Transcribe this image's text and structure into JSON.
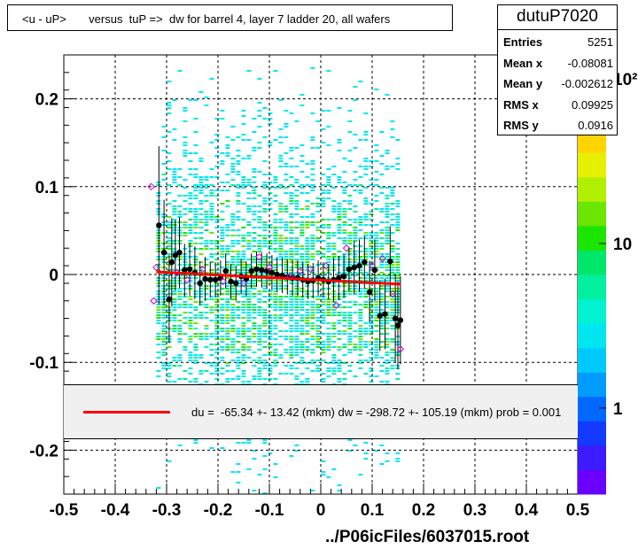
{
  "title": "<u - uP>       versus  tuP =>  dw for barrel 4, layer 7 ladder 20, all wafers",
  "stats": {
    "name": "dutuP7020",
    "rows": [
      {
        "label": "Entries",
        "value": "5251"
      },
      {
        "label": "Mean x",
        "value": "-0.08081"
      },
      {
        "label": "Mean y",
        "value": "-0.002612"
      },
      {
        "label": "RMS x",
        "value": "0.09925"
      },
      {
        "label": "RMS y",
        "value": "0.0916"
      }
    ]
  },
  "fit_legend": {
    "text": "du =  -65.34 +- 13.42 (mkm) dw = -298.72 +- 105.19 (mkm) prob = 0.001",
    "line_color": "#ff0000"
  },
  "file_label": "../P06icFiles/6037015.root",
  "colors": {
    "profile_points": "#000000",
    "open_points": "#cc00cc",
    "fit_line": "#ff0000",
    "palette": [
      "#6a00ff",
      "#3c1bff",
      "#1439ff",
      "#0067ff",
      "#009cff",
      "#00c9ff",
      "#00e6f0",
      "#00f2d0",
      "#00f0a0",
      "#00e66a",
      "#1ae600",
      "#6ae600",
      "#b0f000",
      "#e6f000",
      "#ffd400",
      "#ff9c00",
      "#ff5a00",
      "#ff0000"
    ]
  },
  "chart_data": {
    "type": "scatter",
    "title": "<u - uP>       versus  tuP =>  dw for barrel 4, layer 7 ladder 20, all wafers",
    "xlim": [
      -0.5,
      0.5
    ],
    "ylim": [
      -0.25,
      0.25
    ],
    "x_ticks": [
      "-0.5",
      "-0.4",
      "-0.3",
      "-0.2",
      "-0.1",
      "0",
      "0.1",
      "0.2",
      "0.3",
      "0.4",
      "0.5"
    ],
    "y_ticks": [
      {
        "value": 0.2,
        "label": "0.2"
      },
      {
        "value": 0.1,
        "label": "0.1"
      },
      {
        "value": 0,
        "label": "0"
      },
      {
        "value": -0.1,
        "label": "-0.1"
      },
      {
        "value": -0.2,
        "label": "-0.2"
      }
    ],
    "grid": true,
    "colorbar_labels": [
      {
        "value": 1,
        "label": "1"
      },
      {
        "value": 10,
        "label": "10"
      },
      {
        "value": 100,
        "label": "10²"
      }
    ],
    "colorbar_range": [
      0.3,
      140
    ],
    "density": {
      "x_range": [
        -0.32,
        0.15
      ],
      "y_center": -0.01,
      "y_sigma": 0.09
    },
    "profile": [
      {
        "x": -0.315,
        "y": 0.056,
        "err": 0.09
      },
      {
        "x": -0.305,
        "y": 0.025,
        "err": 0.06
      },
      {
        "x": -0.295,
        "y": -0.028,
        "err": 0.05
      },
      {
        "x": -0.29,
        "y": 0.014,
        "err": 0.05
      },
      {
        "x": -0.283,
        "y": 0.022,
        "err": 0.04
      },
      {
        "x": -0.275,
        "y": 0.025,
        "err": 0.04
      },
      {
        "x": -0.265,
        "y": 0.005,
        "err": 0.03
      },
      {
        "x": -0.255,
        "y": 0.006,
        "err": 0.03
      },
      {
        "x": -0.245,
        "y": 0.002,
        "err": 0.03
      },
      {
        "x": -0.235,
        "y": -0.01,
        "err": 0.025
      },
      {
        "x": -0.225,
        "y": -0.005,
        "err": 0.025
      },
      {
        "x": -0.215,
        "y": -0.006,
        "err": 0.02
      },
      {
        "x": -0.205,
        "y": -0.006,
        "err": 0.02
      },
      {
        "x": -0.195,
        "y": -0.004,
        "err": 0.02
      },
      {
        "x": -0.185,
        "y": 0.004,
        "err": 0.02
      },
      {
        "x": -0.175,
        "y": -0.008,
        "err": 0.02
      },
      {
        "x": -0.165,
        "y": -0.01,
        "err": 0.02
      },
      {
        "x": -0.155,
        "y": -0.002,
        "err": 0.02
      },
      {
        "x": -0.145,
        "y": -0.005,
        "err": 0.02
      },
      {
        "x": -0.135,
        "y": 0.004,
        "err": 0.02
      },
      {
        "x": -0.125,
        "y": 0.006,
        "err": 0.02
      },
      {
        "x": -0.115,
        "y": 0.005,
        "err": 0.02
      },
      {
        "x": -0.105,
        "y": 0.004,
        "err": 0.02
      },
      {
        "x": -0.095,
        "y": 0.002,
        "err": 0.02
      },
      {
        "x": -0.085,
        "y": 0.0,
        "err": 0.02
      },
      {
        "x": -0.075,
        "y": -0.001,
        "err": 0.02
      },
      {
        "x": -0.065,
        "y": -0.003,
        "err": 0.02
      },
      {
        "x": -0.055,
        "y": -0.004,
        "err": 0.02
      },
      {
        "x": -0.045,
        "y": -0.004,
        "err": 0.02
      },
      {
        "x": -0.035,
        "y": -0.006,
        "err": 0.02
      },
      {
        "x": -0.025,
        "y": -0.008,
        "err": 0.02
      },
      {
        "x": -0.015,
        "y": -0.007,
        "err": 0.02
      },
      {
        "x": -0.005,
        "y": -0.004,
        "err": 0.02
      },
      {
        "x": 0.005,
        "y": -0.006,
        "err": 0.02
      },
      {
        "x": 0.015,
        "y": -0.008,
        "err": 0.02
      },
      {
        "x": 0.025,
        "y": -0.006,
        "err": 0.025
      },
      {
        "x": 0.035,
        "y": -0.004,
        "err": 0.025
      },
      {
        "x": 0.045,
        "y": -0.002,
        "err": 0.025
      },
      {
        "x": 0.055,
        "y": 0.006,
        "err": 0.025
      },
      {
        "x": 0.065,
        "y": 0.008,
        "err": 0.03
      },
      {
        "x": 0.075,
        "y": 0.01,
        "err": 0.03
      },
      {
        "x": 0.085,
        "y": 0.014,
        "err": 0.03
      },
      {
        "x": 0.095,
        "y": -0.02,
        "err": 0.035
      },
      {
        "x": 0.105,
        "y": 0.005,
        "err": 0.035
      },
      {
        "x": 0.115,
        "y": -0.047,
        "err": 0.04
      },
      {
        "x": 0.125,
        "y": -0.045,
        "err": 0.04
      },
      {
        "x": 0.135,
        "y": 0.015,
        "err": 0.04
      },
      {
        "x": 0.145,
        "y": -0.05,
        "err": 0.05
      },
      {
        "x": 0.15,
        "y": -0.058,
        "err": 0.05
      },
      {
        "x": 0.155,
        "y": -0.052,
        "err": 0.05
      }
    ],
    "open_points": [
      {
        "x": -0.33,
        "y": 0.1
      },
      {
        "x": -0.325,
        "y": -0.03
      },
      {
        "x": -0.32,
        "y": 0.008
      },
      {
        "x": -0.28,
        "y": 0.002
      },
      {
        "x": -0.26,
        "y": -0.006
      },
      {
        "x": -0.23,
        "y": 0.006
      },
      {
        "x": -0.19,
        "y": -0.008
      },
      {
        "x": -0.15,
        "y": -0.01
      },
      {
        "x": -0.12,
        "y": 0.02
      },
      {
        "x": -0.1,
        "y": 0.008
      },
      {
        "x": -0.06,
        "y": -0.002
      },
      {
        "x": -0.04,
        "y": 0.004
      },
      {
        "x": -0.02,
        "y": 0.006
      },
      {
        "x": 0.01,
        "y": 0.01
      },
      {
        "x": 0.03,
        "y": -0.035
      },
      {
        "x": 0.05,
        "y": 0.03
      },
      {
        "x": 0.1,
        "y": 0.01
      },
      {
        "x": 0.12,
        "y": 0.018
      },
      {
        "x": 0.14,
        "y": -0.022
      },
      {
        "x": 0.155,
        "y": -0.085
      }
    ],
    "fit_line": {
      "x": [
        -0.32,
        0.155
      ],
      "y": [
        0.003,
        -0.011
      ]
    }
  }
}
